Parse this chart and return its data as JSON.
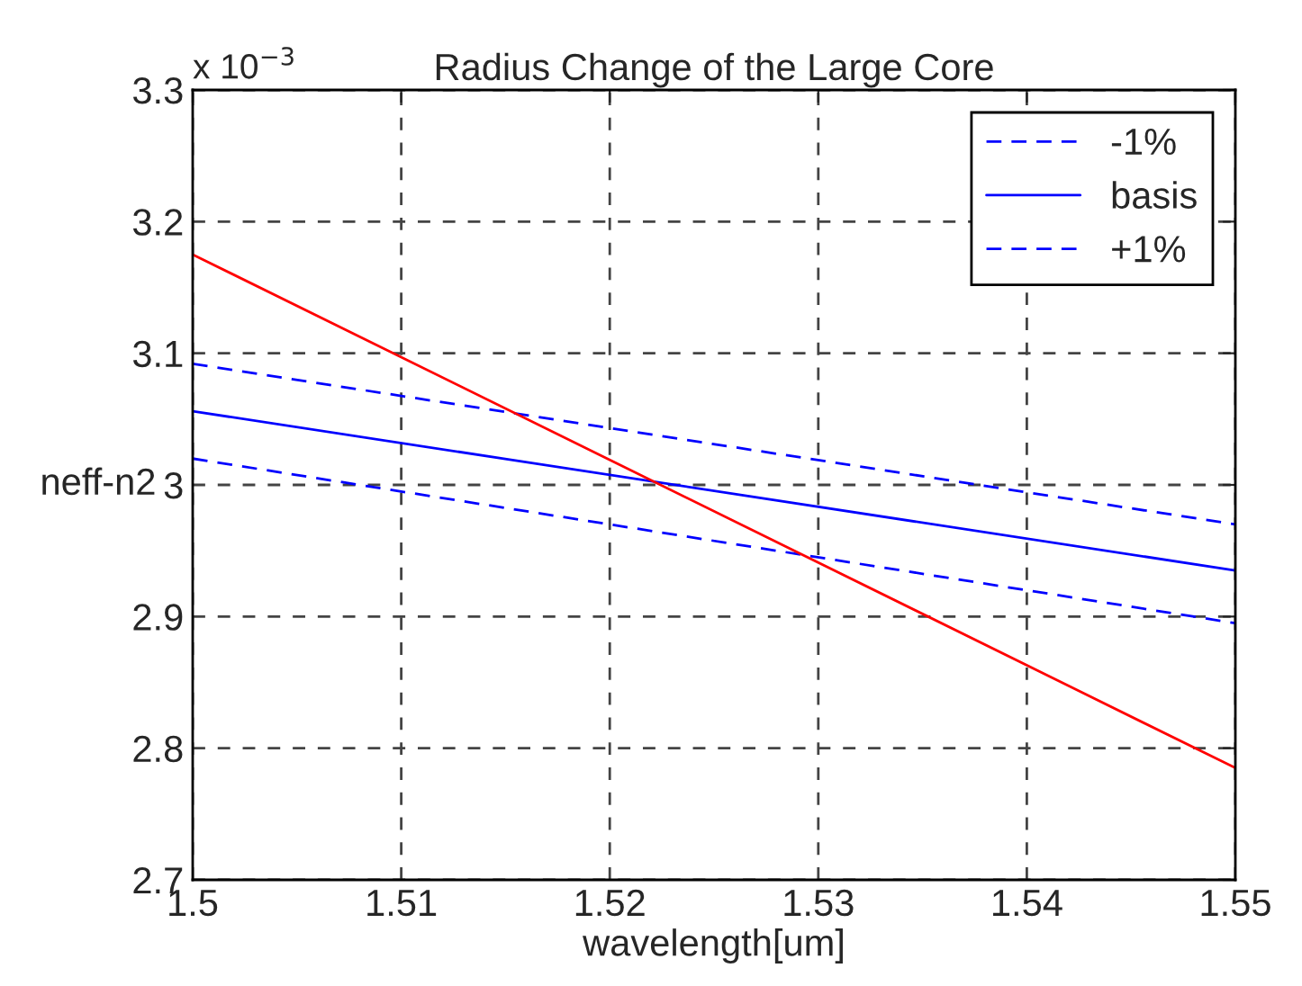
{
  "chart_data": {
    "type": "line",
    "title": "Radius Change of the Large Core",
    "xlabel": "wavelength[um]",
    "ylabel": "neff-n2",
    "annotations": [
      "x 10$^{−3}$"
    ],
    "x": [
      1.5,
      1.55
    ],
    "series": [
      {
        "name": "-1%",
        "color": "#0000ff",
        "line_style": "dashed",
        "values": [
          3.02,
          2.895
        ]
      },
      {
        "name": "basis",
        "color": "#0000ff",
        "line_style": "solid",
        "values": [
          3.056,
          2.935
        ]
      },
      {
        "name": "+1%",
        "color": "#0000ff",
        "line_style": "dashed",
        "values": [
          3.092,
          2.97
        ]
      },
      {
        "color": "#ff0000",
        "line_style": "solid",
        "values": [
          3.175,
          2.785
        ]
      }
    ],
    "xlim": [
      1.5,
      1.55
    ],
    "xticks": [
      1.5,
      1.51,
      1.52,
      1.53,
      1.54,
      1.55
    ],
    "ylim": [
      2.7,
      3.3
    ],
    "yticks": [
      2.7,
      2.8,
      2.9,
      3,
      3.1,
      3.2,
      3.3
    ],
    "grid": true,
    "legend": "top right",
    "marker": "none"
  }
}
